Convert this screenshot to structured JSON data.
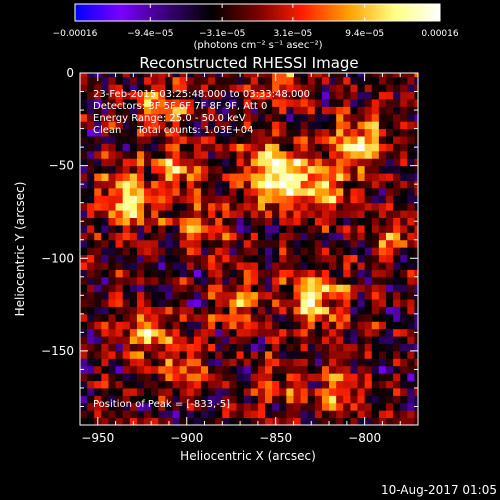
{
  "chart_data": {
    "type": "heatmap",
    "title": "Reconstructed RHESSI Image",
    "xlabel": "Heliocentric X (arcsec)",
    "ylabel": "Heliocentric Y (arcsec)",
    "xlim": [
      -960,
      -770
    ],
    "ylim": [
      -190,
      0
    ],
    "x_ticks": [
      -950,
      -900,
      -850,
      -800
    ],
    "x_tick_labels": [
      "−950",
      "−900",
      "−850",
      "−800"
    ],
    "y_ticks": [
      0,
      -50,
      -100,
      -150
    ],
    "y_tick_labels": [
      "0",
      "−50",
      "−100",
      "−150"
    ],
    "colorbar": {
      "range": [
        -0.00016,
        0.00016
      ],
      "tick_values": [
        -0.00016,
        -9.4e-05,
        -3.1e-05,
        3.1e-05,
        9.4e-05,
        0.00016
      ],
      "tick_labels": [
        "−0.00016",
        "−9.4e−05",
        "−3.1e−05",
        "3.1e−05",
        "9.4e−05",
        "0.00016"
      ],
      "unit_text": "(photons cm⁻² s⁻¹ asec⁻²)",
      "colormap_stops": [
        "#0000ff",
        "#7a00ff",
        "#380078",
        "#000000",
        "#7a0000",
        "#ff2000",
        "#ffa000",
        "#ffff80",
        "#ffffff"
      ]
    },
    "annotations": {
      "lines": [
        "23-Feb-2015 03:25:48.000 to 03:33:48.000",
        "Detectors: 3F 5F 6F 7F 8F 9F, Att 0",
        "Energy Range: 25.0 - 50.0 keV",
        "Clean     Total counts: 1.03E+04"
      ],
      "peak": "Position of Peak = [-833,-5]"
    },
    "sources": [
      {
        "x": -850,
        "y": -55,
        "amplitude": 1.0,
        "sigma": 12
      },
      {
        "x": -803,
        "y": -38,
        "amplitude": 0.75,
        "sigma": 10
      },
      {
        "x": -822,
        "y": -63,
        "amplitude": 0.65,
        "sigma": 10
      },
      {
        "x": -933,
        "y": -68,
        "amplitude": 0.7,
        "sigma": 11
      },
      {
        "x": -905,
        "y": -53,
        "amplitude": 0.55,
        "sigma": 9
      },
      {
        "x": -915,
        "y": -18,
        "amplitude": 0.55,
        "sigma": 10
      },
      {
        "x": -890,
        "y": -83,
        "amplitude": 0.45,
        "sigma": 9
      },
      {
        "x": -828,
        "y": -122,
        "amplitude": 0.75,
        "sigma": 11
      },
      {
        "x": -872,
        "y": -123,
        "amplitude": 0.55,
        "sigma": 9
      },
      {
        "x": -922,
        "y": -140,
        "amplitude": 0.6,
        "sigma": 10
      },
      {
        "x": -900,
        "y": -158,
        "amplitude": 0.45,
        "sigma": 9
      },
      {
        "x": -850,
        "y": -168,
        "amplitude": 0.45,
        "sigma": 9
      },
      {
        "x": -815,
        "y": -172,
        "amplitude": 0.45,
        "sigma": 9
      },
      {
        "x": -785,
        "y": -88,
        "amplitude": 0.45,
        "sigma": 8
      },
      {
        "x": -848,
        "y": -5,
        "amplitude": 0.5,
        "sigma": 9
      }
    ],
    "timestamp": "10-Aug-2017 01:05"
  }
}
